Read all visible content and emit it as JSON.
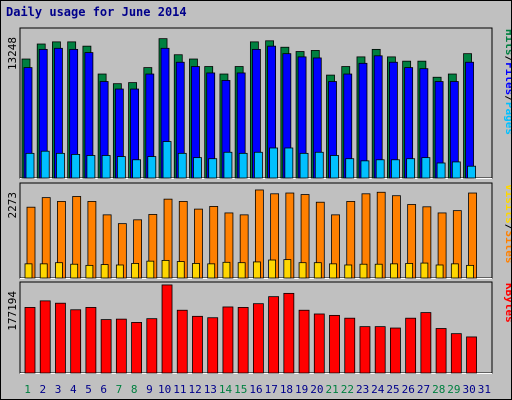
{
  "title": "Daily usage for June 2014",
  "colors": {
    "background": "#c0c0c0",
    "title": "#00008b",
    "hits": "#008040",
    "files": "#0000ff",
    "pages": "#00c0ff",
    "visits": "#ffd700",
    "sites": "#ff8000",
    "kbytes": "#ff0000"
  },
  "chart_data": [
    {
      "type": "bar",
      "title": "Daily usage for June 2014",
      "panel": "hits-files-pages",
      "y_max_label": "13248",
      "legend": [
        {
          "text": "Pages",
          "color": "#00c0ff"
        },
        {
          "text": "Files",
          "color": "#0000ff"
        },
        {
          "text": "Hits",
          "color": "#008040"
        }
      ],
      "categories": [
        "1",
        "2",
        "3",
        "4",
        "5",
        "6",
        "7",
        "8",
        "9",
        "10",
        "11",
        "12",
        "13",
        "14",
        "15",
        "16",
        "17",
        "18",
        "19",
        "20",
        "21",
        "22",
        "23",
        "24",
        "25",
        "26",
        "27",
        "28",
        "29",
        "30",
        "31"
      ],
      "series": [
        {
          "name": "Hits",
          "values": [
            11100,
            12500,
            12700,
            12700,
            12300,
            9700,
            8800,
            8900,
            10300,
            13000,
            11500,
            11100,
            10400,
            9700,
            10400,
            12700,
            12800,
            12200,
            11800,
            11900,
            9600,
            10400,
            11300,
            12000,
            11300,
            10900,
            10900,
            9400,
            9700,
            11600,
            0
          ]
        },
        {
          "name": "Files",
          "values": [
            10300,
            12000,
            12100,
            12000,
            11700,
            9000,
            8300,
            8300,
            9700,
            12100,
            10800,
            10400,
            9800,
            9100,
            9800,
            12000,
            12300,
            11600,
            11300,
            11200,
            9000,
            9700,
            10700,
            11400,
            10800,
            10300,
            10200,
            9000,
            9000,
            10800,
            0
          ]
        },
        {
          "name": "Pages",
          "values": [
            2300,
            2500,
            2300,
            2200,
            2100,
            2100,
            2000,
            1700,
            2000,
            3400,
            2300,
            1900,
            1800,
            2400,
            2300,
            2400,
            2800,
            2800,
            2300,
            2400,
            2100,
            1800,
            1600,
            1700,
            1700,
            1800,
            1900,
            1400,
            1500,
            1100,
            0
          ]
        }
      ]
    },
    {
      "type": "bar",
      "panel": "sites-visits",
      "y_max_label": "2273",
      "legend": [
        {
          "text": "Sites",
          "color": "#ff8000"
        },
        {
          "text": "Visits",
          "color": "#ffd700"
        }
      ],
      "categories": [
        "1",
        "2",
        "3",
        "4",
        "5",
        "6",
        "7",
        "8",
        "9",
        "10",
        "11",
        "12",
        "13",
        "14",
        "15",
        "16",
        "17",
        "18",
        "19",
        "20",
        "21",
        "22",
        "23",
        "24",
        "25",
        "26",
        "27",
        "28",
        "29",
        "30",
        "31"
      ],
      "series": [
        {
          "name": "Sites",
          "values": [
            1850,
            2100,
            2000,
            2130,
            2000,
            1650,
            1420,
            1520,
            1660,
            2060,
            2000,
            1800,
            1870,
            1700,
            1650,
            2300,
            2200,
            2220,
            2180,
            1980,
            1650,
            2000,
            2200,
            2240,
            2150,
            1920,
            1860,
            1700,
            1760,
            2220,
            0
          ]
        },
        {
          "name": "Visits",
          "values": [
            370,
            370,
            400,
            360,
            330,
            350,
            340,
            380,
            440,
            460,
            430,
            380,
            370,
            410,
            400,
            420,
            470,
            480,
            400,
            400,
            370,
            340,
            360,
            360,
            370,
            380,
            390,
            340,
            370,
            330,
            0
          ]
        }
      ]
    },
    {
      "type": "bar",
      "panel": "kbytes",
      "y_max_label": "177194",
      "legend": [
        {
          "text": "KBytes",
          "color": "#ff0000"
        }
      ],
      "categories": [
        "1",
        "2",
        "3",
        "4",
        "5",
        "6",
        "7",
        "8",
        "9",
        "10",
        "11",
        "12",
        "13",
        "14",
        "15",
        "16",
        "17",
        "18",
        "19",
        "20",
        "21",
        "22",
        "23",
        "24",
        "25",
        "26",
        "27",
        "28",
        "29",
        "30",
        "31"
      ],
      "series": [
        {
          "name": "KBytes",
          "values": [
            140000,
            154000,
            149000,
            135000,
            140000,
            114000,
            115000,
            108000,
            116000,
            188000,
            134000,
            121000,
            118000,
            141000,
            140000,
            148000,
            163000,
            170000,
            134000,
            126000,
            123000,
            117000,
            99000,
            99000,
            96000,
            117000,
            129000,
            95000,
            84000,
            77000,
            0
          ]
        }
      ]
    }
  ]
}
